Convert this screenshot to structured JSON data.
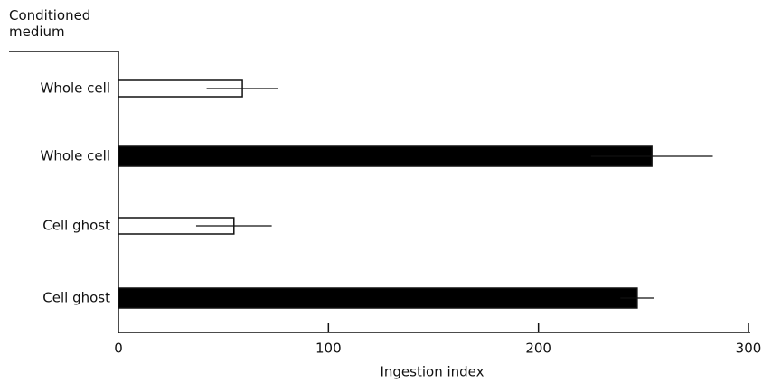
{
  "chart_data": {
    "type": "hbar",
    "y_label": "Conditioned medium",
    "x_label": "Ingestion index",
    "categories": [
      "Whole cell",
      "Whole cell",
      "Cell ghost",
      "Cell ghost"
    ],
    "values": [
      59,
      254,
      55,
      247
    ],
    "errors": [
      17,
      29,
      18,
      8
    ],
    "colors": [
      "#ffffff",
      "#000000",
      "#ffffff",
      "#000000"
    ],
    "xlim": [
      0,
      300
    ],
    "xticks": [
      0,
      100,
      200,
      300
    ]
  }
}
